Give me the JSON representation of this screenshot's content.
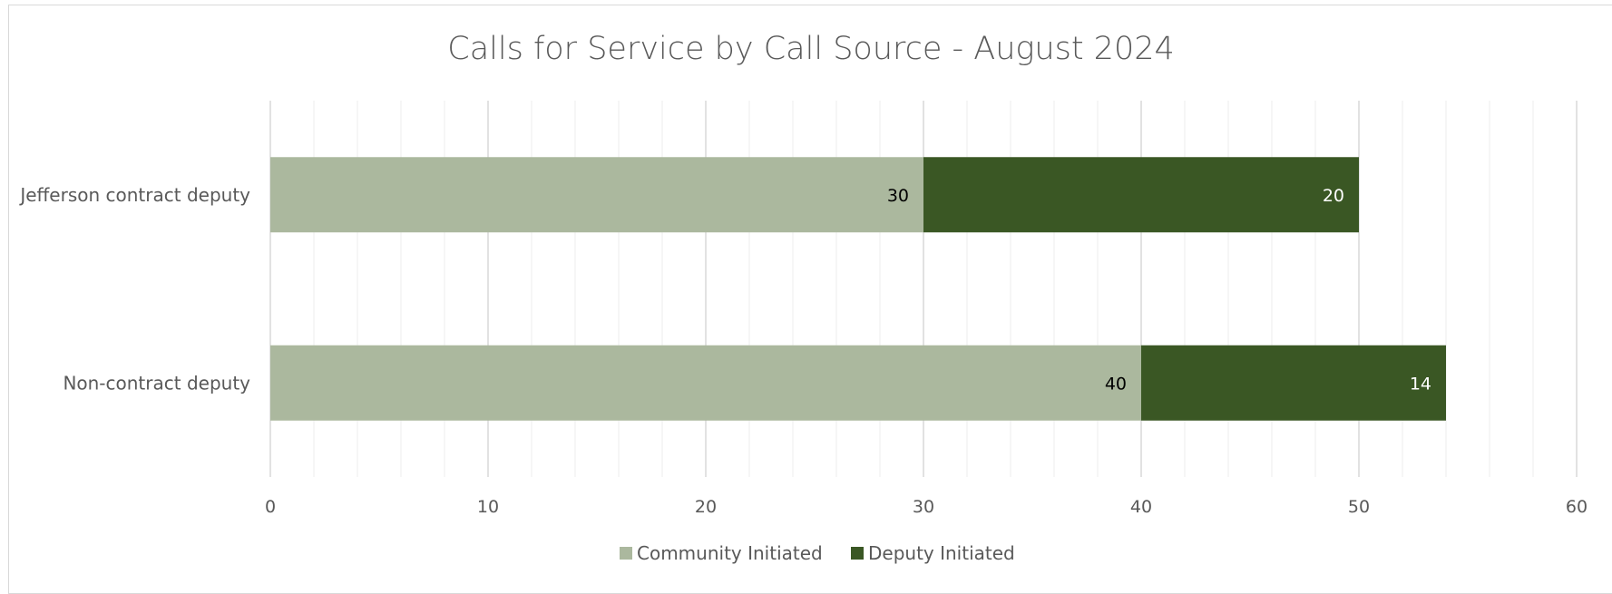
{
  "chart_data": {
    "type": "bar",
    "orientation": "horizontal",
    "stacked": true,
    "title": "Calls for Service by Call Source - August 2024",
    "categories": [
      "Jefferson contract deputy",
      "Non-contract deputy"
    ],
    "series": [
      {
        "name": "Community Initiated",
        "values": [
          30,
          40
        ],
        "color": "#abb89e",
        "label_color": "#000000"
      },
      {
        "name": "Deputy Initiated",
        "values": [
          20,
          14
        ],
        "color": "#3a5724",
        "label_color": "#ffffff"
      }
    ],
    "xlim": [
      0,
      60
    ],
    "x_ticks": [
      0,
      10,
      20,
      30,
      40,
      50,
      60
    ],
    "grid": true,
    "legend_position": "bottom"
  }
}
